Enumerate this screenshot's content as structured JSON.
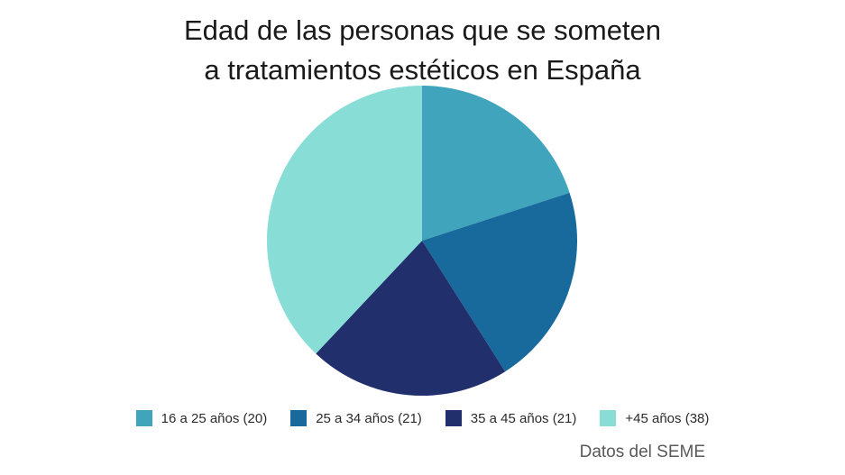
{
  "title_lines": [
    "Edad de las personas que se someten",
    "a tratamientos estéticos en España"
  ],
  "source": "Datos del SEME",
  "chart_data": {
    "type": "pie",
    "title": "Edad de las personas que se someten a tratamientos estéticos en España",
    "categories": [
      "16 a 25 años",
      "25 a 34 años",
      "35 a 45 años",
      "+45 años"
    ],
    "values": [
      20,
      21,
      21,
      38
    ],
    "legend_labels": [
      "16 a 25 años (20)",
      "25 a 34 años (21)",
      "35 a 45 años (21)",
      "+45 años (38)"
    ],
    "colors": [
      "#3fa4bc",
      "#186a9c",
      "#21306c",
      "#88ddd7"
    ],
    "legend_position": "bottom",
    "start": "top, clockwise"
  }
}
